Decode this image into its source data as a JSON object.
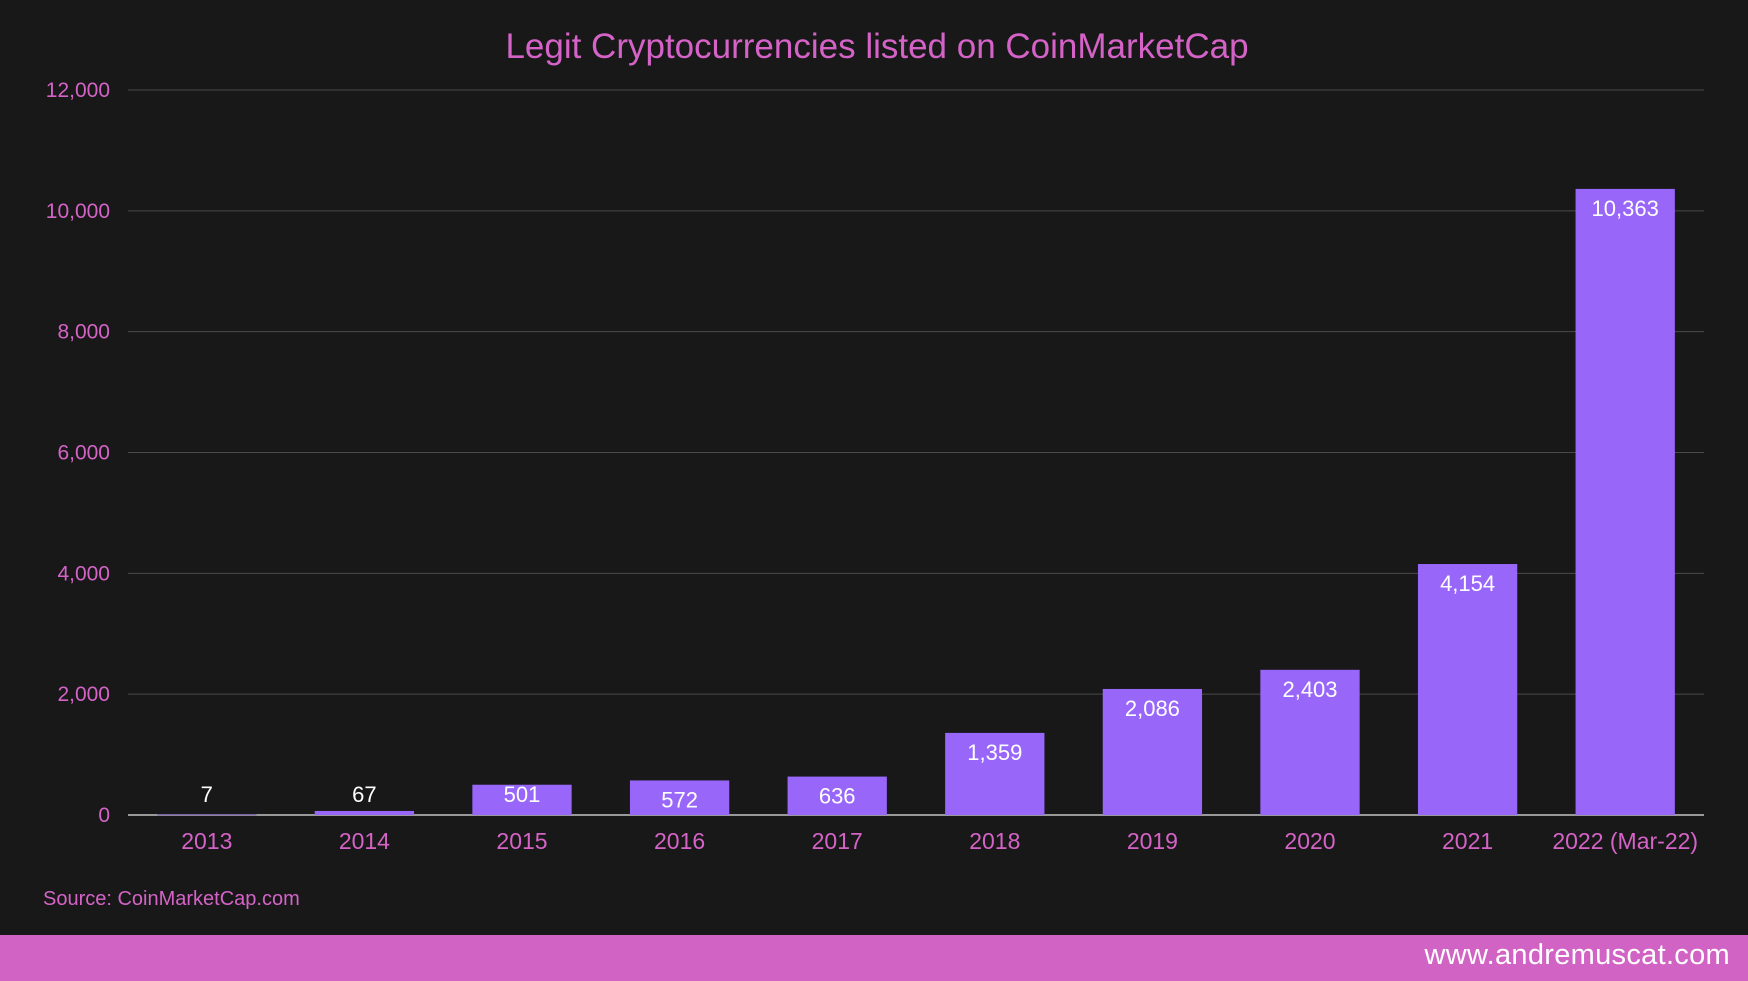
{
  "chart_data": {
    "type": "bar",
    "title": "Legit Cryptocurrencies listed on CoinMarketCap",
    "categories": [
      "2013",
      "2014",
      "2015",
      "2016",
      "2017",
      "2018",
      "2019",
      "2020",
      "2021",
      "2022 (Mar-22)"
    ],
    "values": [
      7,
      67,
      501,
      572,
      636,
      1359,
      2086,
      2403,
      4154,
      10363
    ],
    "data_labels": [
      "7",
      "67",
      "501",
      "572",
      "636",
      "1,359",
      "2,086",
      "2,403",
      "4,154",
      "10,363"
    ],
    "ylim": [
      0,
      12000
    ],
    "yticks": [
      0,
      2000,
      4000,
      6000,
      8000,
      10000,
      12000
    ],
    "ytick_labels": [
      "0",
      "2,000",
      "4,000",
      "6,000",
      "8,000",
      "10,000",
      "12,000"
    ],
    "grid": true,
    "legend": "none",
    "xlabel": "",
    "ylabel": "",
    "bar_color": "#9966fa",
    "text_color": "#d563c7",
    "background_color": "#181818"
  },
  "source": "Source: CoinMarketCap.com",
  "footer": {
    "url": "www.andremuscat.com",
    "band_color": "#d063c4"
  }
}
